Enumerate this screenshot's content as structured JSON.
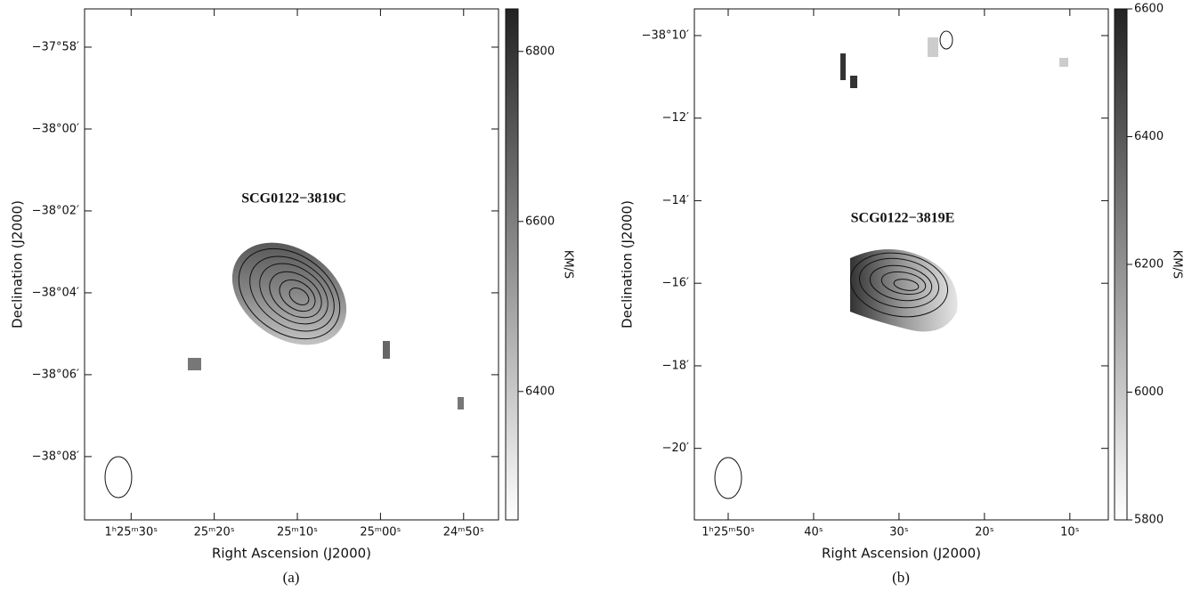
{
  "chart_data": [
    {
      "type": "velocity-map",
      "object_label": "SCG0122−3819C",
      "x_label": "Right Ascension (J2000)",
      "y_label": "Declination (J2000)",
      "colorbar_label": "KM/S",
      "caption": "(a)",
      "xlim": [
        5135.6,
        5085.8
      ],
      "xticks": [
        {
          "value": 5130,
          "label": "1ʰ25ᵐ30ˢ"
        },
        {
          "value": 5120,
          "label": "25ᵐ20ˢ"
        },
        {
          "value": 5110,
          "label": "25ᵐ10ˢ"
        },
        {
          "value": 5100,
          "label": "25ᵐ00ˢ"
        },
        {
          "value": 5090,
          "label": "24ᵐ50ˢ"
        }
      ],
      "ylim": [
        -38.1591,
        -37.9511
      ],
      "yticks": [
        {
          "value": -37.96667,
          "label": "−37°58′"
        },
        {
          "value": -38.0,
          "label": "−38°00′"
        },
        {
          "value": -38.03333,
          "label": "−38°02′"
        },
        {
          "value": -38.06667,
          "label": "−38°04′"
        },
        {
          "value": -38.1,
          "label": "−38°06′"
        },
        {
          "value": -38.13333,
          "label": "−38°08′"
        }
      ],
      "clim": [
        6249,
        6850
      ],
      "cticks": [
        6400,
        6600,
        6800
      ]
    },
    {
      "type": "velocity-map",
      "object_label": "SCG0122−3819E",
      "x_label": "Right Ascension (J2000)",
      "y_label": "Declination (J2000)",
      "colorbar_label": "KM/S",
      "caption": "(b)",
      "xlim": [
        5153.96,
        5105.5
      ],
      "xticks": [
        {
          "value": 5150,
          "label": "1ʰ25ᵐ50ˢ"
        },
        {
          "value": 5140,
          "label": "40ˢ"
        },
        {
          "value": 5130,
          "label": "30ˢ"
        },
        {
          "value": 5120,
          "label": "20ˢ"
        },
        {
          "value": 5110,
          "label": "10ˢ"
        }
      ],
      "ylim": [
        -38.3622,
        -38.1559
      ],
      "yticks": [
        {
          "value": -38.16667,
          "label": "−38°10′"
        },
        {
          "value": -38.2,
          "label": "−12′"
        },
        {
          "value": -38.23333,
          "label": "−14′"
        },
        {
          "value": -38.26667,
          "label": "−16′"
        },
        {
          "value": -38.3,
          "label": "−18′"
        },
        {
          "value": -38.33333,
          "label": "−20′"
        }
      ],
      "clim": [
        5800,
        6600
      ],
      "cticks": [
        5800,
        6000,
        6200,
        6400,
        6600
      ]
    }
  ]
}
